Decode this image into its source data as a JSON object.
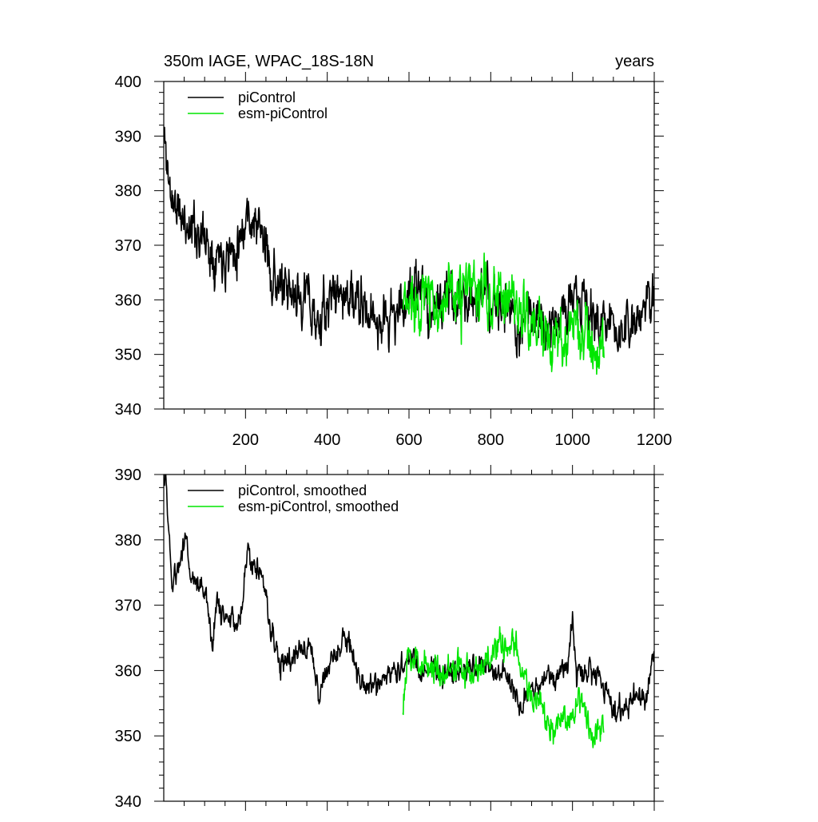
{
  "chart_data": [
    {
      "id": "top",
      "type": "line",
      "title_left": "350m IAGE, WPAC_18S-18N",
      "title_right": "years",
      "xlabel": "",
      "ylabel": "",
      "xlim": [
        0,
        1200
      ],
      "ylim": [
        340,
        400
      ],
      "x_ticks": [
        200,
        400,
        600,
        800,
        1000,
        1200
      ],
      "x_tick_labels": [
        "200",
        "400",
        "600",
        "800",
        "1000",
        "1200"
      ],
      "y_ticks": [
        340,
        350,
        360,
        370,
        380,
        390,
        400
      ],
      "y_tick_labels": [
        "340",
        "350",
        "360",
        "370",
        "380",
        "390",
        "400"
      ],
      "grid": false,
      "legend_position": "top-left",
      "series": [
        {
          "name": "piControl",
          "color": "#000000",
          "x_start": 1,
          "x_end": 1200,
          "noise": 6.5,
          "seed": 11,
          "anchors": [
            [
              1,
              390
            ],
            [
              15,
              380
            ],
            [
              40,
              375
            ],
            [
              80,
              373
            ],
            [
              120,
              369
            ],
            [
              170,
              369
            ],
            [
              205,
              376
            ],
            [
              240,
              372
            ],
            [
              265,
              365
            ],
            [
              300,
              360
            ],
            [
              350,
              361
            ],
            [
              380,
              355
            ],
            [
              420,
              362
            ],
            [
              460,
              360
            ],
            [
              500,
              357
            ],
            [
              540,
              356
            ],
            [
              580,
              358
            ],
            [
              610,
              363
            ],
            [
              650,
              359
            ],
            [
              700,
              360
            ],
            [
              750,
              361
            ],
            [
              800,
              359
            ],
            [
              850,
              358
            ],
            [
              870,
              352
            ],
            [
              880,
              357
            ],
            [
              900,
              358
            ],
            [
              950,
              356
            ],
            [
              1000,
              360
            ],
            [
              1050,
              357
            ],
            [
              1100,
              355
            ],
            [
              1150,
              354
            ],
            [
              1200,
              362
            ]
          ]
        },
        {
          "name": "esm-piControl",
          "color": "#00e600",
          "x_start": 585,
          "x_end": 1077,
          "noise": 8.0,
          "seed": 37,
          "anchors": [
            [
              585,
              358
            ],
            [
              620,
              361
            ],
            [
              660,
              360
            ],
            [
              700,
              359
            ],
            [
              750,
              362
            ],
            [
              800,
              360
            ],
            [
              840,
              361
            ],
            [
              870,
              359
            ],
            [
              900,
              356
            ],
            [
              950,
              351
            ],
            [
              1000,
              355
            ],
            [
              1030,
              353
            ],
            [
              1060,
              351
            ],
            [
              1077,
              350
            ]
          ]
        }
      ]
    },
    {
      "id": "bottom",
      "type": "line",
      "title_left": "",
      "title_right": "",
      "xlabel": "",
      "ylabel": "",
      "xlim": [
        0,
        1200
      ],
      "ylim": [
        340,
        390
      ],
      "x_ticks": [
        200,
        400,
        600,
        800,
        1000,
        1200
      ],
      "x_tick_labels": [],
      "y_ticks": [
        340,
        350,
        360,
        370,
        380,
        390
      ],
      "y_tick_labels": [
        "340",
        "350",
        "360",
        "370",
        "380",
        "390"
      ],
      "grid": false,
      "legend_position": "top-left",
      "series": [
        {
          "name": "piControl, smoothed",
          "color": "#000000",
          "x_start": 1,
          "x_end": 1200,
          "noise": 2.6,
          "seed": 5,
          "anchors": [
            [
              1,
              388
            ],
            [
              5,
              390
            ],
            [
              15,
              378
            ],
            [
              20,
              373
            ],
            [
              40,
              377
            ],
            [
              50,
              380
            ],
            [
              55,
              381
            ],
            [
              65,
              375
            ],
            [
              85,
              373
            ],
            [
              105,
              372
            ],
            [
              120,
              363
            ],
            [
              130,
              371
            ],
            [
              150,
              368
            ],
            [
              170,
              367
            ],
            [
              190,
              369
            ],
            [
              205,
              379
            ],
            [
              215,
              377
            ],
            [
              235,
              375
            ],
            [
              255,
              370
            ],
            [
              270,
              364
            ],
            [
              285,
              362
            ],
            [
              300,
              362
            ],
            [
              330,
              363
            ],
            [
              360,
              363
            ],
            [
              380,
              356
            ],
            [
              400,
              360
            ],
            [
              420,
              362
            ],
            [
              440,
              365
            ],
            [
              460,
              363
            ],
            [
              480,
              358
            ],
            [
              500,
              358
            ],
            [
              520,
              358
            ],
            [
              560,
              360
            ],
            [
              600,
              362
            ],
            [
              640,
              360
            ],
            [
              680,
              359
            ],
            [
              720,
              360
            ],
            [
              760,
              361
            ],
            [
              800,
              360
            ],
            [
              840,
              359
            ],
            [
              860,
              357
            ],
            [
              870,
              354
            ],
            [
              890,
              357
            ],
            [
              920,
              357
            ],
            [
              940,
              360
            ],
            [
              960,
              358
            ],
            [
              990,
              362
            ],
            [
              1000,
              369
            ],
            [
              1010,
              359
            ],
            [
              1040,
              360
            ],
            [
              1060,
              359
            ],
            [
              1080,
              357
            ],
            [
              1100,
              354
            ],
            [
              1130,
              355
            ],
            [
              1150,
              356
            ],
            [
              1180,
              356
            ],
            [
              1200,
              363
            ]
          ]
        },
        {
          "name": "esm-piControl, smoothed",
          "color": "#00e600",
          "x_start": 585,
          "x_end": 1077,
          "noise": 3.3,
          "seed": 23,
          "anchors": [
            [
              585,
              355
            ],
            [
              600,
              362
            ],
            [
              640,
              361
            ],
            [
              680,
              360
            ],
            [
              720,
              360
            ],
            [
              760,
              360
            ],
            [
              800,
              362
            ],
            [
              840,
              364
            ],
            [
              860,
              363
            ],
            [
              880,
              360
            ],
            [
              900,
              356
            ],
            [
              930,
              353
            ],
            [
              950,
              351
            ],
            [
              980,
              352
            ],
            [
              1000,
              354
            ],
            [
              1020,
              356
            ],
            [
              1040,
              352
            ],
            [
              1060,
              351
            ],
            [
              1077,
              351
            ]
          ]
        }
      ]
    }
  ]
}
